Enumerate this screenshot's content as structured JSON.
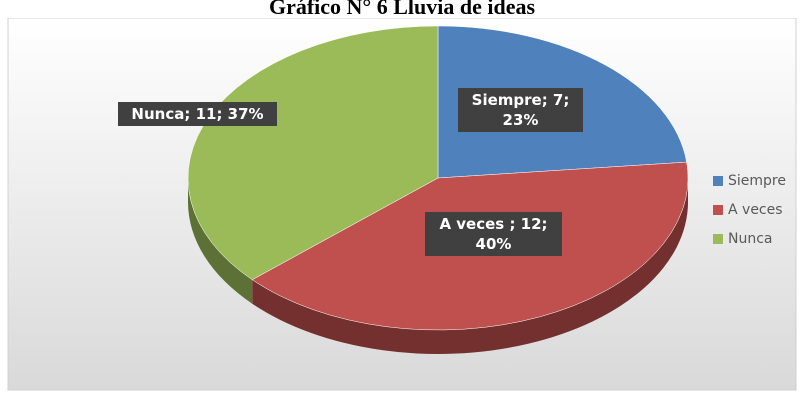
{
  "chart_data": {
    "type": "pie",
    "title": "Gráfico N° 6 Lluvia de ideas",
    "categories": [
      "Siempre",
      "A veces",
      "Nunca"
    ],
    "values": [
      7,
      12,
      11
    ],
    "value_labels": [
      "Siempre; 7; 23%",
      "A veces ; 12; 40%",
      "Nunca; 11; 37%"
    ],
    "colors": [
      "#4f81bd",
      "#c0504d",
      "#9bbb59"
    ],
    "legend": "right"
  }
}
